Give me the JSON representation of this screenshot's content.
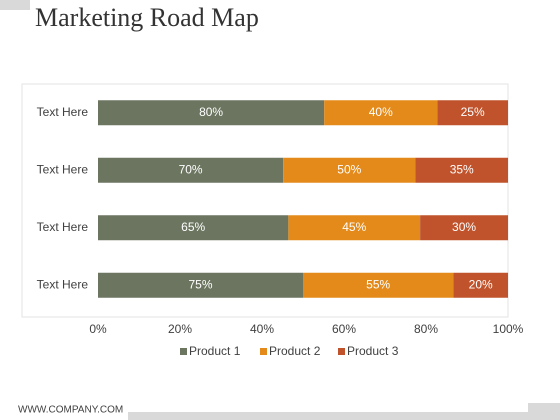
{
  "chart_data": {
    "type": "bar",
    "orientation": "horizontal",
    "stacking": "percent",
    "title": "Marketing Road Map",
    "categories": [
      "Text Here",
      "Text Here",
      "Text Here",
      "Text Here"
    ],
    "series": [
      {
        "name": "Product 1",
        "color": "#6b7560",
        "values": [
          80,
          70,
          65,
          75
        ],
        "value_labels": [
          "80%",
          "70%",
          "65%",
          "75%"
        ]
      },
      {
        "name": "Product 2",
        "color": "#e38a1b",
        "values": [
          40,
          50,
          45,
          55
        ],
        "value_labels": [
          "40%",
          "50%",
          "45%",
          "55%"
        ]
      },
      {
        "name": "Product 3",
        "color": "#c0532b",
        "values": [
          25,
          35,
          30,
          20
        ],
        "value_labels": [
          "25%",
          "35%",
          "30%",
          "20%"
        ]
      }
    ],
    "xlim": [
      0,
      100
    ],
    "xticks": [
      {
        "value": 0,
        "label": "0%"
      },
      {
        "value": 20,
        "label": "20%"
      },
      {
        "value": 40,
        "label": "40%"
      },
      {
        "value": 60,
        "label": "60%"
      },
      {
        "value": 80,
        "label": "80%"
      },
      {
        "value": 100,
        "label": "100%"
      }
    ],
    "grid": false,
    "legend": "bottom"
  },
  "footer": "WWW.COMPANY.COM"
}
